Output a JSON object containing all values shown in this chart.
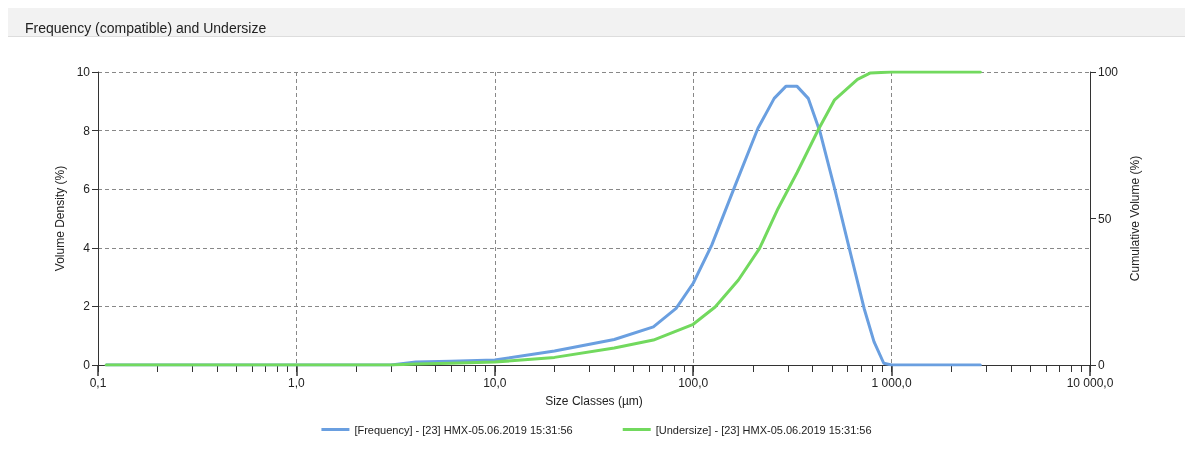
{
  "chart_data": {
    "type": "line",
    "title": "Frequency (compatible) and Undersize",
    "xlabel": "Size Classes (µm)",
    "ylabel": "Volume Density (%)",
    "y2label": "Cumulative Volume (%)",
    "log": "x",
    "grid": true,
    "legend": "bottom",
    "marker": "none",
    "line_style": "solid",
    "xlim": [
      0.1,
      10000
    ],
    "xticks": [
      {
        "value": 0.1,
        "label": "0,1"
      },
      {
        "value": 0.2,
        "label": null
      },
      {
        "value": 0.3,
        "label": null
      },
      {
        "value": 0.4,
        "label": null
      },
      {
        "value": 0.5,
        "label": null
      },
      {
        "value": 0.6,
        "label": null
      },
      {
        "value": 0.7,
        "label": null
      },
      {
        "value": 0.8,
        "label": null
      },
      {
        "value": 0.9,
        "label": null
      },
      {
        "value": 1,
        "label": "1,0"
      },
      {
        "value": 2,
        "label": null
      },
      {
        "value": 3,
        "label": null
      },
      {
        "value": 4,
        "label": null
      },
      {
        "value": 5,
        "label": null
      },
      {
        "value": 6,
        "label": null
      },
      {
        "value": 7,
        "label": null
      },
      {
        "value": 8,
        "label": null
      },
      {
        "value": 9,
        "label": null
      },
      {
        "value": 10,
        "label": "10,0"
      },
      {
        "value": 20,
        "label": null
      },
      {
        "value": 30,
        "label": null
      },
      {
        "value": 40,
        "label": null
      },
      {
        "value": 50,
        "label": null
      },
      {
        "value": 60,
        "label": null
      },
      {
        "value": 70,
        "label": null
      },
      {
        "value": 80,
        "label": null
      },
      {
        "value": 90,
        "label": null
      },
      {
        "value": 100,
        "label": "100,0"
      },
      {
        "value": 200,
        "label": null
      },
      {
        "value": 300,
        "label": null
      },
      {
        "value": 400,
        "label": null
      },
      {
        "value": 500,
        "label": null
      },
      {
        "value": 600,
        "label": null
      },
      {
        "value": 700,
        "label": null
      },
      {
        "value": 800,
        "label": null
      },
      {
        "value": 900,
        "label": null
      },
      {
        "value": 1000,
        "label": "1 000,0"
      },
      {
        "value": 2000,
        "label": null
      },
      {
        "value": 3000,
        "label": null
      },
      {
        "value": 4000,
        "label": null
      },
      {
        "value": 5000,
        "label": null
      },
      {
        "value": 6000,
        "label": null
      },
      {
        "value": 7000,
        "label": null
      },
      {
        "value": 8000,
        "label": null
      },
      {
        "value": 9000,
        "label": null
      },
      {
        "value": 10000,
        "label": "10 000,0"
      }
    ],
    "ylim": [
      0,
      10
    ],
    "yticks": [
      0,
      2,
      4,
      6,
      8,
      10
    ],
    "y2lim": [
      0,
      100
    ],
    "y2ticks": [
      0,
      50,
      100
    ],
    "series": [
      {
        "name": "[Frequency] - [23] HMX-05.06.2019 15:31:56",
        "color": "#6a9fe0",
        "x": [
          0.11,
          1,
          3,
          4,
          6,
          10,
          20,
          40,
          63,
          82,
          100,
          124,
          163,
          212,
          256,
          293,
          334,
          380,
          435,
          516,
          612,
          727,
          815,
          913,
          1000,
          2800
        ],
        "values": [
          0,
          0,
          0,
          0.1,
          0.13,
          0.17,
          0.48,
          0.87,
          1.3,
          1.93,
          2.79,
          4.09,
          6.14,
          8.08,
          9.1,
          9.51,
          9.51,
          9.1,
          7.97,
          6.03,
          3.98,
          1.93,
          0.8,
          0.06,
          0,
          0
        ]
      },
      {
        "name": "[Undersize] - [23] HMX-05.06.2019 15:31:56",
        "color": "#72d95e",
        "axis": "y2",
        "x": [
          0.11,
          1,
          3,
          4,
          6,
          10,
          20,
          40,
          63,
          100,
          129,
          169,
          216,
          265,
          334,
          427,
          516,
          673,
          783,
          1000,
          2800
        ],
        "values": [
          0,
          0,
          0,
          0.3,
          0.6,
          1,
          2.6,
          5.8,
          8.5,
          13.9,
          19.8,
          29,
          39.8,
          52.8,
          65.7,
          80.3,
          90.5,
          97.5,
          99.7,
          100,
          100
        ]
      }
    ]
  }
}
